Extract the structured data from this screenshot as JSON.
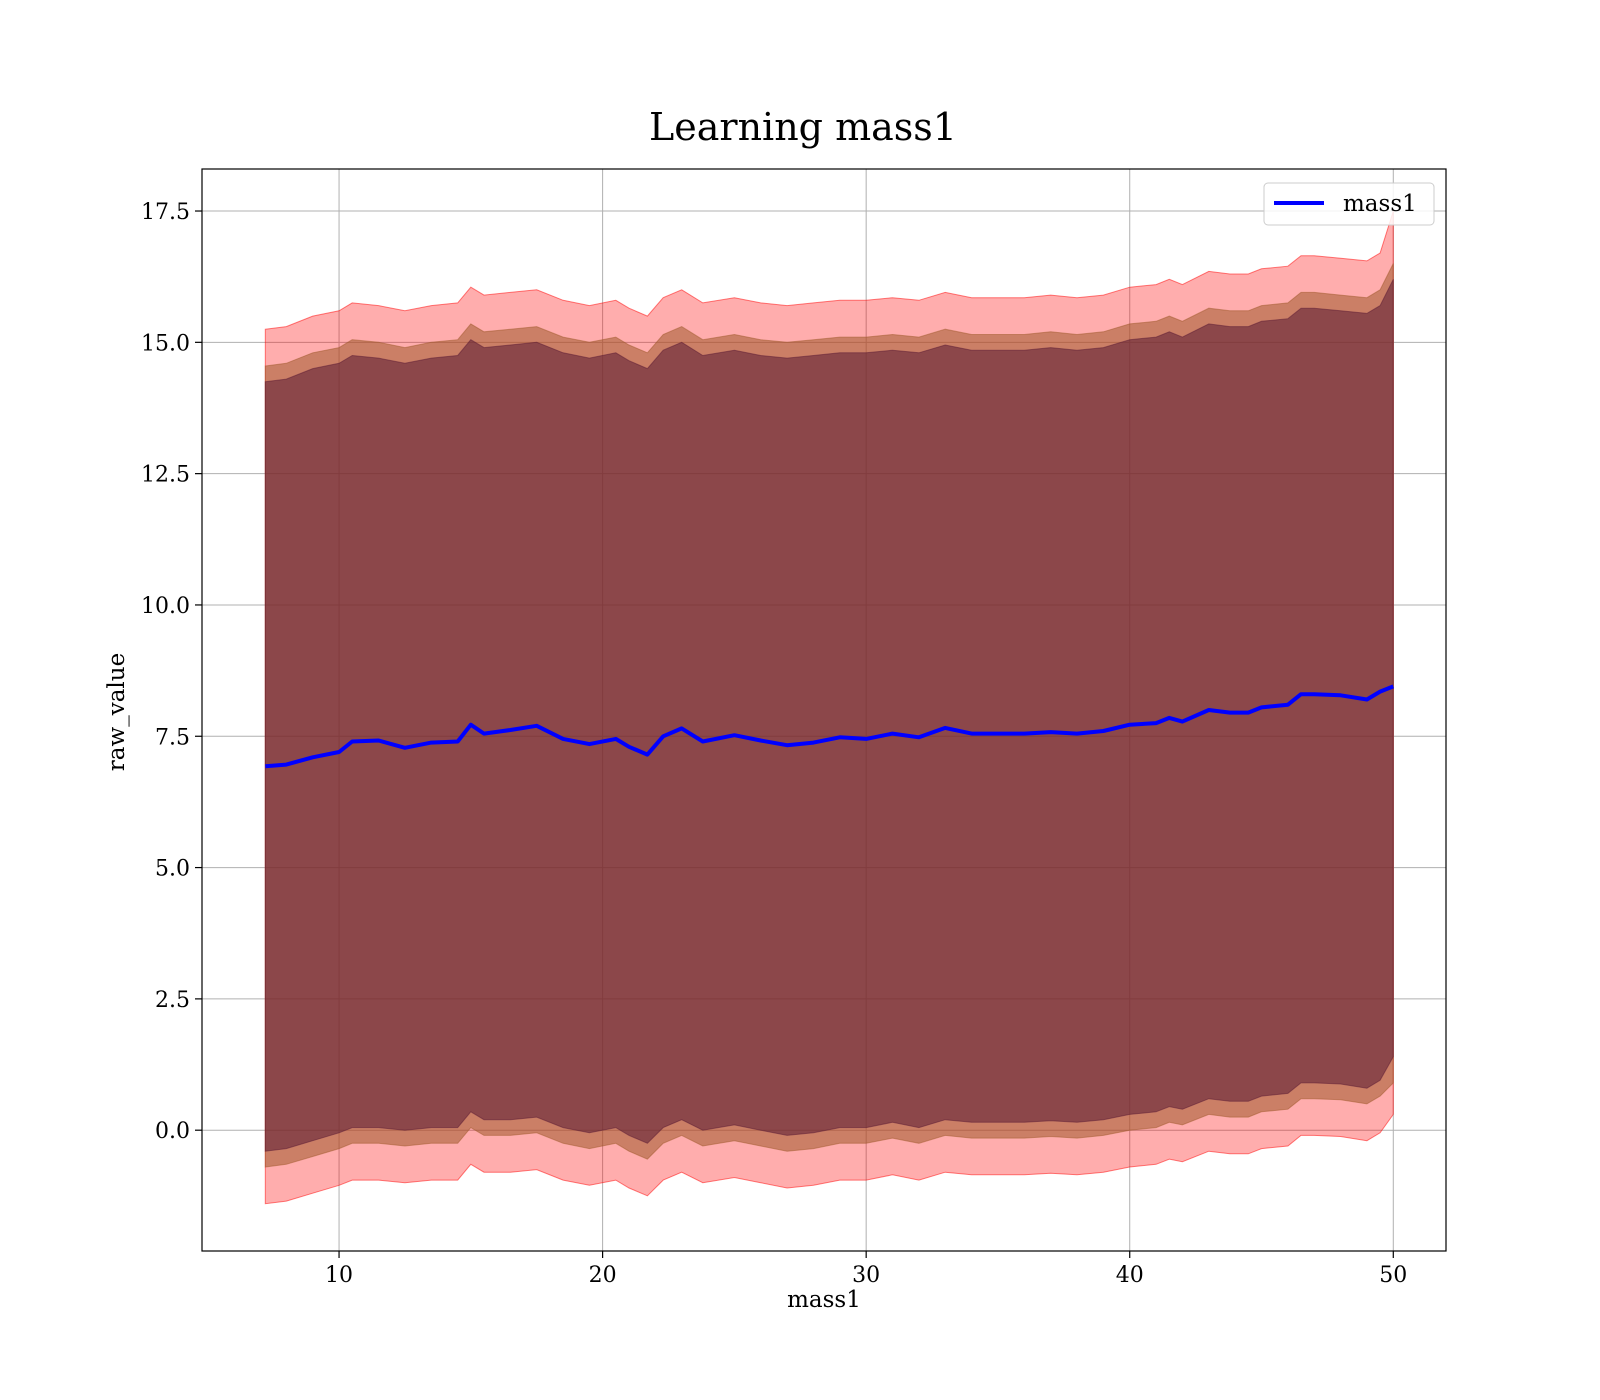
{
  "chart_data": {
    "type": "line",
    "title": "Learning mass1",
    "xlabel": "mass1",
    "ylabel": "raw_value",
    "xlim": [
      4.8,
      52.0
    ],
    "ylim": [
      -2.3,
      18.3
    ],
    "xticks": [
      10,
      20,
      30,
      40,
      50
    ],
    "yticks": [
      0.0,
      2.5,
      5.0,
      7.5,
      10.0,
      12.5,
      15.0,
      17.5
    ],
    "xtick_labels": [
      "10",
      "20",
      "30",
      "40",
      "50"
    ],
    "ytick_labels": [
      "0.0",
      "2.5",
      "5.0",
      "7.5",
      "10.0",
      "12.5",
      "15.0",
      "17.5"
    ],
    "grid": true,
    "legend": {
      "position": "upper-right",
      "entries": [
        "mass1"
      ]
    },
    "colors": {
      "line": "#0000ff",
      "band_outer": "#ff0000",
      "band_middle": "#a05a2c",
      "band_inner": "#5a1a33"
    },
    "series": [
      {
        "name": "mass1",
        "x": [
          7.2,
          8.0,
          9.0,
          10.0,
          10.5,
          11.5,
          12.5,
          13.5,
          14.5,
          15.0,
          15.5,
          16.5,
          17.5,
          18.5,
          19.5,
          20.5,
          21.0,
          21.7,
          22.3,
          23.0,
          23.8,
          25.0,
          26.0,
          27.0,
          28.0,
          29.0,
          30.0,
          31.0,
          32.0,
          33.0,
          34.0,
          35.0,
          36.0,
          37.0,
          38.0,
          39.0,
          40.0,
          41.0,
          41.5,
          42.0,
          43.0,
          43.8,
          44.5,
          45.0,
          46.0,
          46.5,
          47.0,
          48.0,
          49.0,
          49.5,
          50.0
        ],
        "y": [
          6.93,
          6.96,
          7.1,
          7.2,
          7.4,
          7.42,
          7.28,
          7.38,
          7.4,
          7.72,
          7.55,
          7.62,
          7.7,
          7.45,
          7.35,
          7.45,
          7.3,
          7.15,
          7.5,
          7.65,
          7.4,
          7.52,
          7.42,
          7.33,
          7.38,
          7.48,
          7.45,
          7.55,
          7.48,
          7.66,
          7.55,
          7.55,
          7.55,
          7.58,
          7.55,
          7.6,
          7.72,
          7.75,
          7.85,
          7.78,
          8.0,
          7.95,
          7.95,
          8.05,
          8.1,
          8.3,
          8.3,
          8.28,
          8.2,
          8.35,
          8.45
        ]
      },
      {
        "name": "",
        "kind": "band",
        "x": [
          7.2,
          8.0,
          9.0,
          10.0,
          10.5,
          11.5,
          12.5,
          13.5,
          14.5,
          15.0,
          15.5,
          16.5,
          17.5,
          18.5,
          19.5,
          20.5,
          21.0,
          21.7,
          22.3,
          23.0,
          23.8,
          25.0,
          26.0,
          27.0,
          28.0,
          29.0,
          30.0,
          31.0,
          32.0,
          33.0,
          34.0,
          35.0,
          36.0,
          37.0,
          38.0,
          39.0,
          40.0,
          41.0,
          41.5,
          42.0,
          43.0,
          43.8,
          44.5,
          45.0,
          46.0,
          46.5,
          47.0,
          48.0,
          49.0,
          49.5,
          50.0
        ],
        "lower": [
          -1.4,
          -1.35,
          -1.2,
          -1.05,
          -0.95,
          -0.95,
          -1.0,
          -0.95,
          -0.95,
          -0.65,
          -0.8,
          -0.8,
          -0.75,
          -0.95,
          -1.05,
          -0.95,
          -1.1,
          -1.25,
          -0.95,
          -0.8,
          -1.0,
          -0.9,
          -1.0,
          -1.1,
          -1.05,
          -0.95,
          -0.95,
          -0.85,
          -0.95,
          -0.8,
          -0.85,
          -0.85,
          -0.85,
          -0.82,
          -0.85,
          -0.8,
          -0.7,
          -0.65,
          -0.55,
          -0.6,
          -0.4,
          -0.45,
          -0.45,
          -0.35,
          -0.3,
          -0.1,
          -0.1,
          -0.12,
          -0.2,
          -0.05,
          0.3
        ],
        "upper": [
          15.25,
          15.3,
          15.5,
          15.6,
          15.75,
          15.7,
          15.6,
          15.7,
          15.75,
          16.05,
          15.9,
          15.95,
          16.0,
          15.8,
          15.7,
          15.8,
          15.65,
          15.5,
          15.85,
          16.0,
          15.75,
          15.85,
          15.75,
          15.7,
          15.75,
          15.8,
          15.8,
          15.85,
          15.8,
          15.95,
          15.85,
          15.85,
          15.85,
          15.9,
          15.85,
          15.9,
          16.05,
          16.1,
          16.2,
          16.1,
          16.35,
          16.3,
          16.3,
          16.4,
          16.45,
          16.65,
          16.65,
          16.6,
          16.55,
          16.7,
          17.5
        ]
      },
      {
        "name": "",
        "kind": "band",
        "x": [
          7.2,
          8.0,
          9.0,
          10.0,
          10.5,
          11.5,
          12.5,
          13.5,
          14.5,
          15.0,
          15.5,
          16.5,
          17.5,
          18.5,
          19.5,
          20.5,
          21.0,
          21.7,
          22.3,
          23.0,
          23.8,
          25.0,
          26.0,
          27.0,
          28.0,
          29.0,
          30.0,
          31.0,
          32.0,
          33.0,
          34.0,
          35.0,
          36.0,
          37.0,
          38.0,
          39.0,
          40.0,
          41.0,
          41.5,
          42.0,
          43.0,
          43.8,
          44.5,
          45.0,
          46.0,
          46.5,
          47.0,
          48.0,
          49.0,
          49.5,
          50.0
        ],
        "lower": [
          -0.7,
          -0.65,
          -0.5,
          -0.35,
          -0.25,
          -0.25,
          -0.3,
          -0.25,
          -0.25,
          0.05,
          -0.1,
          -0.1,
          -0.05,
          -0.25,
          -0.35,
          -0.25,
          -0.4,
          -0.55,
          -0.25,
          -0.1,
          -0.3,
          -0.2,
          -0.3,
          -0.4,
          -0.35,
          -0.25,
          -0.25,
          -0.15,
          -0.25,
          -0.1,
          -0.15,
          -0.15,
          -0.15,
          -0.12,
          -0.15,
          -0.1,
          0.0,
          0.05,
          0.15,
          0.1,
          0.3,
          0.25,
          0.25,
          0.35,
          0.4,
          0.6,
          0.6,
          0.58,
          0.5,
          0.65,
          0.9
        ],
        "upper": [
          14.55,
          14.6,
          14.8,
          14.9,
          15.05,
          15.0,
          14.9,
          15.0,
          15.05,
          15.35,
          15.2,
          15.25,
          15.3,
          15.1,
          15.0,
          15.1,
          14.95,
          14.8,
          15.15,
          15.3,
          15.05,
          15.15,
          15.05,
          15.0,
          15.05,
          15.1,
          15.1,
          15.15,
          15.1,
          15.25,
          15.15,
          15.15,
          15.15,
          15.2,
          15.15,
          15.2,
          15.35,
          15.4,
          15.5,
          15.4,
          15.65,
          15.6,
          15.6,
          15.7,
          15.75,
          15.95,
          15.95,
          15.9,
          15.85,
          16.0,
          16.5
        ]
      },
      {
        "name": "",
        "kind": "band",
        "x": [
          7.2,
          8.0,
          9.0,
          10.0,
          10.5,
          11.5,
          12.5,
          13.5,
          14.5,
          15.0,
          15.5,
          16.5,
          17.5,
          18.5,
          19.5,
          20.5,
          21.0,
          21.7,
          22.3,
          23.0,
          23.8,
          25.0,
          26.0,
          27.0,
          28.0,
          29.0,
          30.0,
          31.0,
          32.0,
          33.0,
          34.0,
          35.0,
          36.0,
          37.0,
          38.0,
          39.0,
          40.0,
          41.0,
          41.5,
          42.0,
          43.0,
          43.8,
          44.5,
          45.0,
          46.0,
          46.5,
          47.0,
          48.0,
          49.0,
          49.5,
          50.0
        ],
        "lower": [
          -0.4,
          -0.35,
          -0.2,
          -0.05,
          0.05,
          0.05,
          0.0,
          0.05,
          0.05,
          0.35,
          0.2,
          0.2,
          0.25,
          0.05,
          -0.05,
          0.05,
          -0.1,
          -0.25,
          0.05,
          0.2,
          0.0,
          0.1,
          0.0,
          -0.1,
          -0.05,
          0.05,
          0.05,
          0.15,
          0.05,
          0.2,
          0.15,
          0.15,
          0.15,
          0.18,
          0.15,
          0.2,
          0.3,
          0.35,
          0.45,
          0.4,
          0.6,
          0.55,
          0.55,
          0.65,
          0.7,
          0.9,
          0.9,
          0.88,
          0.8,
          0.95,
          1.4
        ],
        "upper": [
          14.25,
          14.3,
          14.5,
          14.6,
          14.75,
          14.7,
          14.6,
          14.7,
          14.75,
          15.05,
          14.9,
          14.95,
          15.0,
          14.8,
          14.7,
          14.8,
          14.65,
          14.5,
          14.85,
          15.0,
          14.75,
          14.85,
          14.75,
          14.7,
          14.75,
          14.8,
          14.8,
          14.85,
          14.8,
          14.95,
          14.85,
          14.85,
          14.85,
          14.9,
          14.85,
          14.9,
          15.05,
          15.1,
          15.2,
          15.1,
          15.35,
          15.3,
          15.3,
          15.4,
          15.45,
          15.65,
          15.65,
          15.6,
          15.55,
          15.7,
          16.2
        ]
      }
    ]
  }
}
